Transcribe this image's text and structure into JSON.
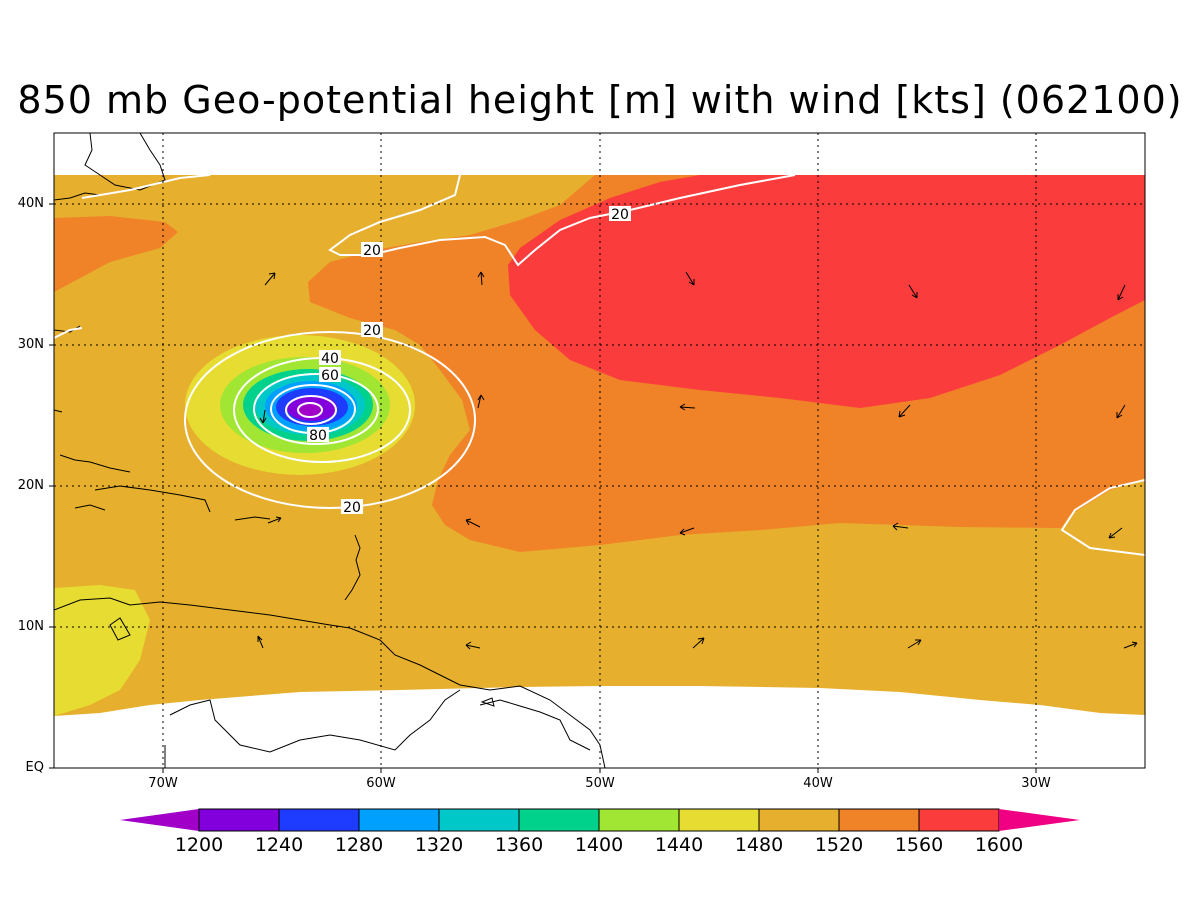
{
  "title": "850 mb Geo-potential height [m] with wind [kts] (062100)",
  "lat_labels": [
    "40N",
    "30N",
    "20N",
    "10N",
    "EQ"
  ],
  "lon_labels": [
    "70W",
    "60W",
    "50W",
    "40W",
    "30W"
  ],
  "contour_labels": [
    "20",
    "20",
    "20",
    "20",
    "40",
    "60",
    "80"
  ],
  "colorbar": {
    "labels": [
      "1200",
      "1240",
      "1280",
      "1320",
      "1360",
      "1400",
      "1440",
      "1480",
      "1520",
      "1560",
      "1600"
    ],
    "colors": [
      "#a000c8",
      "#8200dc",
      "#1e3cff",
      "#00a0ff",
      "#00c8c8",
      "#00d28c",
      "#a0e632",
      "#e6dc32",
      "#e6af2d",
      "#f08228",
      "#fa3c3c",
      "#f00082"
    ]
  },
  "field_colors": {
    "c1480": "#e6dc32",
    "c1520": "#e6af2d",
    "c1560": "#f08228",
    "c1600": "#fa3c3c",
    "land_outline": "#000000",
    "isotach": "#ffffff"
  }
}
